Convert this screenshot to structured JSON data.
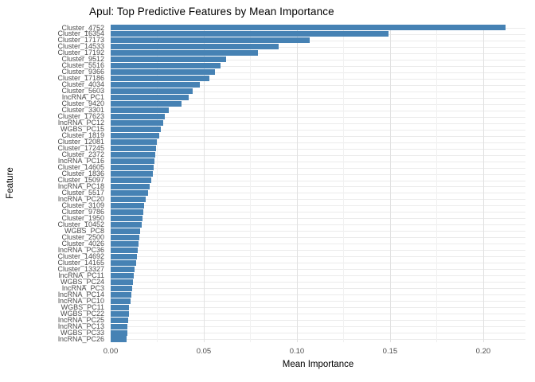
{
  "chart_data": {
    "type": "bar",
    "orientation": "horizontal",
    "title": "Apul: Top Predictive Features by Mean Importance",
    "xlabel": "Mean Importance",
    "ylabel": "Feature",
    "xlim": [
      0,
      0.2227
    ],
    "x_ticks": [
      0,
      0.05,
      0.1,
      0.15,
      0.2
    ],
    "x_tick_labels": [
      "0.00",
      "0.05",
      "0.10",
      "0.15",
      "0.20"
    ],
    "x_minor_ticks": [
      0.025,
      0.075,
      0.125,
      0.175
    ],
    "grid": true,
    "legend": "none",
    "bar_color": "#4682B4",
    "categories": [
      "Cluster_4752",
      "Cluster_16354",
      "Cluster_17173",
      "Cluster_14533",
      "Cluster_17192",
      "Cluster_9512",
      "Cluster_5516",
      "Cluster_9366",
      "Cluster_17186",
      "Cluster_4034",
      "Cluster_5603",
      "lncRNA_PC1",
      "Cluster_9420",
      "Cluster_3301",
      "Cluster_17623",
      "lncRNA_PC12",
      "WGBS_PC15",
      "Cluster_1819",
      "Cluster_12081",
      "Cluster_17245",
      "Cluster_2372",
      "lncRNA_PC16",
      "Cluster_14605",
      "Cluster_1836",
      "Cluster_15097",
      "lncRNA_PC18",
      "Cluster_5517",
      "lncRNA_PC20",
      "Cluster_3109",
      "Cluster_9786",
      "Cluster_1950",
      "Cluster_10452",
      "WGBS_PC8",
      "Cluster_2500",
      "Cluster_4026",
      "lncRNA_PC36",
      "Cluster_14692",
      "Cluster_14165",
      "Cluster_13327",
      "lncRNA_PC11",
      "WGBS_PC24",
      "lncRNA_PC3",
      "lncRNA_PC14",
      "lncRNA_PC10",
      "WGBS_PC11",
      "WGBS_PC22",
      "lncRNA_PC25",
      "lncRNA_PC13",
      "WGBS_PC33",
      "lncRNA_PC26"
    ],
    "values": [
      0.212,
      0.149,
      0.107,
      0.09,
      0.079,
      0.062,
      0.059,
      0.056,
      0.053,
      0.048,
      0.044,
      0.042,
      0.038,
      0.031,
      0.029,
      0.028,
      0.027,
      0.026,
      0.025,
      0.0245,
      0.024,
      0.0235,
      0.023,
      0.0225,
      0.022,
      0.021,
      0.02,
      0.019,
      0.018,
      0.0175,
      0.017,
      0.0165,
      0.016,
      0.0155,
      0.015,
      0.0145,
      0.014,
      0.0135,
      0.013,
      0.0125,
      0.012,
      0.0115,
      0.011,
      0.0105,
      0.01,
      0.01,
      0.0095,
      0.009,
      0.009,
      0.0085
    ]
  },
  "colors": {
    "background": "#ffffff",
    "bar": "#4682B4",
    "grid_major": "#e2e2e2",
    "grid_minor": "#f1f1f1",
    "grid_row": "#ebebeb",
    "tick_text": "#4d4d4d",
    "title_text": "#000000"
  }
}
